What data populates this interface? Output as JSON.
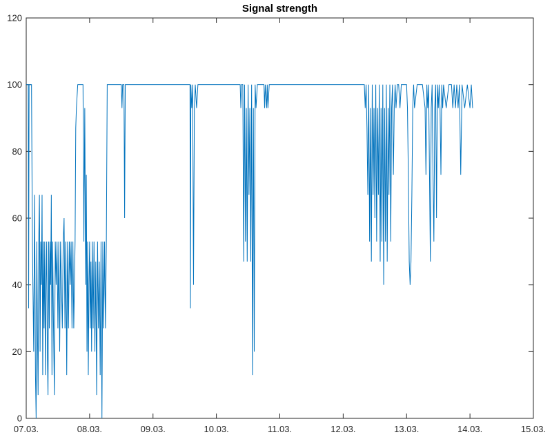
{
  "chart_data": {
    "type": "line",
    "title": "Signal strength",
    "xlabel": "",
    "ylabel": "",
    "x_unit": "date",
    "x_ticks": [
      "07.03.",
      "08.03.",
      "09.03.",
      "10.03.",
      "11.03.",
      "12.03.",
      "13.03.",
      "14.03.",
      "15.03."
    ],
    "xlim": [
      "07.03. 00:00",
      "15.03. 00:00"
    ],
    "y_ticks": [
      "0",
      "20",
      "40",
      "60",
      "80",
      "100",
      "120"
    ],
    "ylim": [
      0,
      120
    ],
    "grid": false,
    "line_color": "#0072bd",
    "series": [
      {
        "points": [
          [
            "07.03. 00:00",
            100
          ],
          [
            "07.03. 00:45",
            100
          ],
          [
            "07.03. 00:55",
            33
          ],
          [
            "07.03. 01:05",
            100
          ],
          [
            "07.03. 01:40",
            100
          ],
          [
            "07.03. 02:00",
            100
          ],
          [
            "07.03. 02:20",
            53
          ],
          [
            "07.03. 02:50",
            20
          ],
          [
            "07.03. 03:10",
            67
          ],
          [
            "07.03. 03:30",
            13
          ],
          [
            "07.03. 03:45",
            0
          ],
          [
            "07.03. 04:00",
            53
          ],
          [
            "07.03. 04:15",
            27
          ],
          [
            "07.03. 04:30",
            7
          ],
          [
            "07.03. 04:45",
            53
          ],
          [
            "07.03. 05:00",
            67
          ],
          [
            "07.03. 05:15",
            20
          ],
          [
            "07.03. 05:30",
            53
          ],
          [
            "07.03. 05:45",
            40
          ],
          [
            "07.03. 06:00",
            67
          ],
          [
            "07.03. 06:15",
            13
          ],
          [
            "07.03. 06:30",
            53
          ],
          [
            "07.03. 06:45",
            27
          ],
          [
            "07.03. 07:00",
            53
          ],
          [
            "07.03. 07:15",
            13
          ],
          [
            "07.03. 07:30",
            40
          ],
          [
            "07.03. 07:45",
            53
          ],
          [
            "07.03. 08:00",
            20
          ],
          [
            "07.03. 08:15",
            7
          ],
          [
            "07.03. 08:30",
            53
          ],
          [
            "07.03. 08:45",
            27
          ],
          [
            "07.03. 09:00",
            53
          ],
          [
            "07.03. 09:15",
            40
          ],
          [
            "07.03. 09:30",
            67
          ],
          [
            "07.03. 09:45",
            13
          ],
          [
            "07.03. 10:00",
            53
          ],
          [
            "07.03. 10:20",
            27
          ],
          [
            "07.03. 10:40",
            7
          ],
          [
            "07.03. 11:00",
            53
          ],
          [
            "07.03. 11:20",
            40
          ],
          [
            "07.03. 11:40",
            53
          ],
          [
            "07.03. 12:00",
            27
          ],
          [
            "07.03. 12:20",
            53
          ],
          [
            "07.03. 12:40",
            20
          ],
          [
            "07.03. 13:00",
            53
          ],
          [
            "07.03. 13:20",
            40
          ],
          [
            "07.03. 13:40",
            27
          ],
          [
            "07.03. 14:00",
            53
          ],
          [
            "07.03. 14:20",
            60
          ],
          [
            "07.03. 14:40",
            27
          ],
          [
            "07.03. 15:00",
            53
          ],
          [
            "07.03. 15:20",
            13
          ],
          [
            "07.03. 15:40",
            53
          ],
          [
            "07.03. 16:00",
            27
          ],
          [
            "07.03. 16:20",
            53
          ],
          [
            "07.03. 16:40",
            40
          ],
          [
            "07.03. 17:00",
            53
          ],
          [
            "07.03. 17:20",
            27
          ],
          [
            "07.03. 17:40",
            53
          ],
          [
            "07.03. 18:00",
            27
          ],
          [
            "07.03. 18:30",
            53
          ],
          [
            "07.03. 18:45",
            87
          ],
          [
            "07.03. 19:00",
            93
          ],
          [
            "07.03. 19:30",
            100
          ],
          [
            "07.03. 20:30",
            100
          ],
          [
            "07.03. 21:30",
            100
          ],
          [
            "07.03. 21:50",
            53
          ],
          [
            "07.03. 22:10",
            93
          ],
          [
            "07.03. 22:30",
            40
          ],
          [
            "07.03. 22:45",
            73
          ],
          [
            "07.03. 23:00",
            20
          ],
          [
            "07.03. 23:15",
            53
          ],
          [
            "07.03. 23:30",
            13
          ],
          [
            "07.03. 23:45",
            40
          ],
          [
            "08.03. 00:00",
            53
          ],
          [
            "08.03. 00:15",
            27
          ],
          [
            "08.03. 00:30",
            47
          ],
          [
            "08.03. 00:45",
            20
          ],
          [
            "08.03. 01:00",
            53
          ],
          [
            "08.03. 01:20",
            27
          ],
          [
            "08.03. 01:40",
            53
          ],
          [
            "08.03. 02:00",
            20
          ],
          [
            "08.03. 02:20",
            47
          ],
          [
            "08.03. 02:40",
            7
          ],
          [
            "08.03. 03:00",
            53
          ],
          [
            "08.03. 03:20",
            27
          ],
          [
            "08.03. 03:40",
            47
          ],
          [
            "08.03. 04:00",
            13
          ],
          [
            "08.03. 04:20",
            53
          ],
          [
            "08.03. 04:40",
            0
          ],
          [
            "08.03. 05:00",
            53
          ],
          [
            "08.03. 05:20",
            27
          ],
          [
            "08.03. 05:40",
            53
          ],
          [
            "08.03. 06:00",
            27
          ],
          [
            "08.03. 06:20",
            53
          ],
          [
            "08.03. 06:40",
            100
          ],
          [
            "08.03. 09:00",
            100
          ],
          [
            "08.03. 12:00",
            100
          ],
          [
            "08.03. 12:15",
            93
          ],
          [
            "08.03. 12:30",
            100
          ],
          [
            "08.03. 13:00",
            100
          ],
          [
            "08.03. 13:15",
            60
          ],
          [
            "08.03. 13:30",
            100
          ],
          [
            "09.03. 12:00",
            100
          ],
          [
            "09.03. 14:00",
            100
          ],
          [
            "09.03. 14:10",
            33
          ],
          [
            "09.03. 14:20",
            100
          ],
          [
            "09.03. 14:40",
            93
          ],
          [
            "09.03. 15:00",
            100
          ],
          [
            "09.03. 15:20",
            40
          ],
          [
            "09.03. 15:40",
            93
          ],
          [
            "09.03. 16:00",
            100
          ],
          [
            "09.03. 16:30",
            93
          ],
          [
            "09.03. 17:00",
            100
          ],
          [
            "10.03. 06:00",
            100
          ],
          [
            "10.03. 09:00",
            100
          ],
          [
            "10.03. 09:15",
            93
          ],
          [
            "10.03. 09:30",
            100
          ],
          [
            "10.03. 10:00",
            100
          ],
          [
            "10.03. 10:20",
            47
          ],
          [
            "10.03. 10:40",
            100
          ],
          [
            "10.03. 11:00",
            53
          ],
          [
            "10.03. 11:20",
            93
          ],
          [
            "10.03. 11:40",
            47
          ],
          [
            "10.03. 12:00",
            100
          ],
          [
            "10.03. 12:20",
            67
          ],
          [
            "10.03. 12:40",
            93
          ],
          [
            "10.03. 13:00",
            47
          ],
          [
            "10.03. 13:20",
            100
          ],
          [
            "10.03. 13:40",
            13
          ],
          [
            "10.03. 14:00",
            93
          ],
          [
            "10.03. 14:20",
            20
          ],
          [
            "10.03. 14:40",
            100
          ],
          [
            "10.03. 15:00",
            93
          ],
          [
            "10.03. 15:30",
            100
          ],
          [
            "10.03. 18:00",
            100
          ],
          [
            "10.03. 18:15",
            93
          ],
          [
            "10.03. 18:30",
            100
          ],
          [
            "10.03. 19:00",
            93
          ],
          [
            "10.03. 19:15",
            100
          ],
          [
            "10.03. 19:30",
            93
          ],
          [
            "10.03. 20:00",
            100
          ],
          [
            "11.03. 12:00",
            100
          ],
          [
            "12.03. 06:00",
            100
          ],
          [
            "12.03. 08:00",
            100
          ],
          [
            "12.03. 08:20",
            93
          ],
          [
            "12.03. 08:40",
            100
          ],
          [
            "12.03. 09:00",
            87
          ],
          [
            "12.03. 09:20",
            67
          ],
          [
            "12.03. 09:40",
            100
          ],
          [
            "12.03. 10:00",
            53
          ],
          [
            "12.03. 10:20",
            93
          ],
          [
            "12.03. 10:40",
            47
          ],
          [
            "12.03. 11:00",
            100
          ],
          [
            "12.03. 11:20",
            67
          ],
          [
            "12.03. 11:40",
            93
          ],
          [
            "12.03. 12:00",
            60
          ],
          [
            "12.03. 12:20",
            100
          ],
          [
            "12.03. 12:40",
            53
          ],
          [
            "12.03. 13:00",
            93
          ],
          [
            "12.03. 13:20",
            67
          ],
          [
            "12.03. 13:40",
            100
          ],
          [
            "12.03. 14:00",
            47
          ],
          [
            "12.03. 14:20",
            93
          ],
          [
            "12.03. 14:40",
            53
          ],
          [
            "12.03. 15:00",
            100
          ],
          [
            "12.03. 15:20",
            40
          ],
          [
            "12.03. 15:40",
            93
          ],
          [
            "12.03. 16:00",
            53
          ],
          [
            "12.03. 16:20",
            100
          ],
          [
            "12.03. 16:40",
            47
          ],
          [
            "12.03. 17:00",
            93
          ],
          [
            "12.03. 17:20",
            67
          ],
          [
            "12.03. 17:40",
            100
          ],
          [
            "12.03. 18:00",
            53
          ],
          [
            "12.03. 18:20",
            93
          ],
          [
            "12.03. 18:40",
            100
          ],
          [
            "12.03. 19:00",
            73
          ],
          [
            "12.03. 19:20",
            93
          ],
          [
            "12.03. 19:40",
            100
          ],
          [
            "12.03. 20:00",
            93
          ],
          [
            "12.03. 20:30",
            100
          ],
          [
            "12.03. 21:00",
            100
          ],
          [
            "12.03. 21:30",
            93
          ],
          [
            "12.03. 22:00",
            100
          ],
          [
            "13.03. 00:00",
            100
          ],
          [
            "13.03. 00:20",
            93
          ],
          [
            "13.03. 00:40",
            73
          ],
          [
            "13.03. 01:00",
            47
          ],
          [
            "13.03. 01:20",
            40
          ],
          [
            "13.03. 01:40",
            47
          ],
          [
            "13.03. 02:00",
            67
          ],
          [
            "13.03. 02:20",
            93
          ],
          [
            "13.03. 02:40",
            100
          ],
          [
            "13.03. 03:00",
            93
          ],
          [
            "13.03. 04:00",
            100
          ],
          [
            "13.03. 05:00",
            100
          ],
          [
            "13.03. 06:00",
            100
          ],
          [
            "13.03. 07:00",
            93
          ],
          [
            "13.03. 07:20",
            73
          ],
          [
            "13.03. 07:40",
            100
          ],
          [
            "13.03. 08:00",
            93
          ],
          [
            "13.03. 08:20",
            100
          ],
          [
            "13.03. 09:00",
            47
          ],
          [
            "13.03. 09:20",
            93
          ],
          [
            "13.03. 09:40",
            100
          ],
          [
            "13.03. 10:00",
            73
          ],
          [
            "13.03. 10:20",
            53
          ],
          [
            "13.03. 10:40",
            93
          ],
          [
            "13.03. 11:00",
            100
          ],
          [
            "13.03. 11:20",
            60
          ],
          [
            "13.03. 11:40",
            100
          ],
          [
            "13.03. 12:00",
            93
          ],
          [
            "13.03. 12:20",
            100
          ],
          [
            "13.03. 12:40",
            93
          ],
          [
            "13.03. 13:00",
            73
          ],
          [
            "13.03. 13:20",
            100
          ],
          [
            "13.03. 13:40",
            93
          ],
          [
            "13.03. 14:00",
            100
          ],
          [
            "13.03. 15:00",
            93
          ],
          [
            "13.03. 16:00",
            100
          ],
          [
            "13.03. 17:00",
            100
          ],
          [
            "13.03. 17:30",
            93
          ],
          [
            "13.03. 18:00",
            100
          ],
          [
            "13.03. 18:30",
            93
          ],
          [
            "13.03. 19:00",
            100
          ],
          [
            "13.03. 19:30",
            93
          ],
          [
            "13.03. 20:00",
            100
          ],
          [
            "13.03. 20:30",
            73
          ],
          [
            "13.03. 21:00",
            100
          ],
          [
            "13.03. 22:00",
            93
          ],
          [
            "13.03. 23:00",
            100
          ],
          [
            "14.03. 00:00",
            93
          ],
          [
            "14.03. 00:30",
            100
          ],
          [
            "14.03. 01:00",
            93
          ]
        ]
      }
    ]
  }
}
